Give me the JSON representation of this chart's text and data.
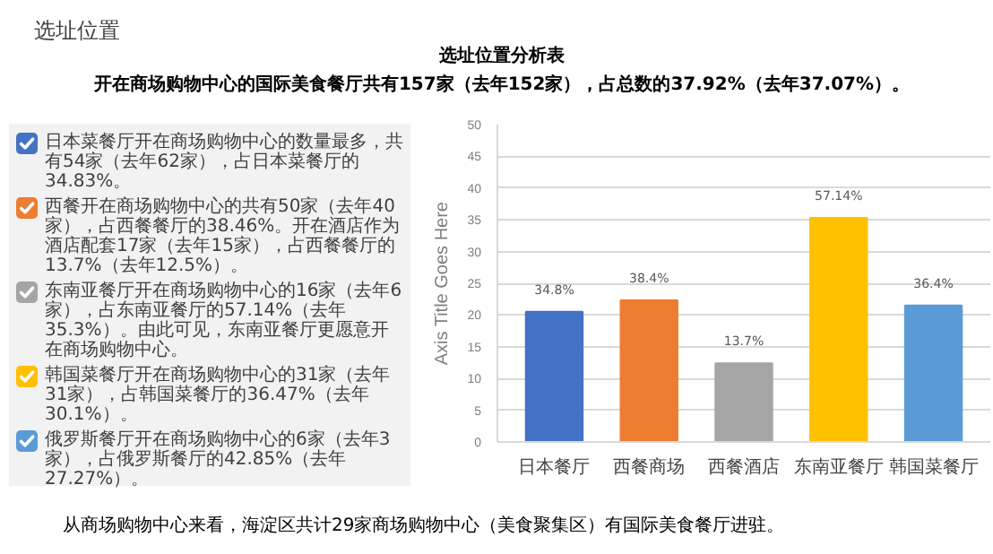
{
  "chart_data": [
    {
      "type": "bar",
      "title": "选址位置分析表",
      "subtitle": "开在商场购物中心的国际美食餐厅共有157家（去年152家），占总数的37.92%（去年37.07%）。",
      "ylabel": "Axis Title Goes Here",
      "categories": [
        "日本餐厅",
        "西餐商场",
        "西餐酒店",
        "东南亚餐厅",
        "韩国菜餐厅"
      ],
      "values": [
        20.5,
        22.3,
        12.4,
        35.3,
        21.5
      ],
      "colors": [
        "#4472c4",
        "#ed7d31",
        "#a5a5a5",
        "#ffc000",
        "#5b9bd5"
      ],
      "ylim": [
        0,
        50
      ],
      "yticks": [
        0,
        5,
        10,
        15,
        20,
        25,
        30,
        35,
        40,
        45,
        50
      ],
      "grid": "y",
      "annotations": [
        "选址位置",
        {
          "text": "34.8%",
          "x": "日本餐厅",
          "y": 20.5
        },
        {
          "text": "38.4%",
          "x": "西餐商场",
          "y": 22.3
        },
        {
          "text": "13.7%",
          "x": "西餐酒店",
          "y": 12.4
        },
        {
          "text": "57.14%",
          "x": "东南亚餐厅",
          "y": 35.3
        },
        {
          "text": "36.4%",
          "x": "韩国菜餐厅",
          "y": 21.5
        },
        "从商场购物中心来看，海淀区共计29家商场购物中心（美食聚集区）有国际美食餐厅进驻。"
      ]
    },
    {
      "type": "other",
      "annotations": [
        "日本菜餐厅开在商场购物中心的数量最多，共有54家（去年62家），占日本菜餐厅的34.83%。",
        "西餐开在商场购物中心的共有50家（去年40家），占西餐餐厅的38.46%。开在酒店作为酒店配套17家（去年15家），占西餐餐厅的13.7%（去年12.5%）。",
        "东南亚餐厅开在商场购物中心的16家（去年6家），占东南亚餐厅的57.14%（去年35.3%）。由此可见，东南亚餐厅更愿意开在商场购物中心。",
        "韩国菜餐厅开在商场购物中心的31家（去年31家），占韩国菜餐厅的36.47%（去年30.1%）。",
        "俄罗斯餐厅开在商场购物中心的6家（去年3家），占俄罗斯餐厅的42.85%（去年27.27%）。"
      ]
    }
  ]
}
